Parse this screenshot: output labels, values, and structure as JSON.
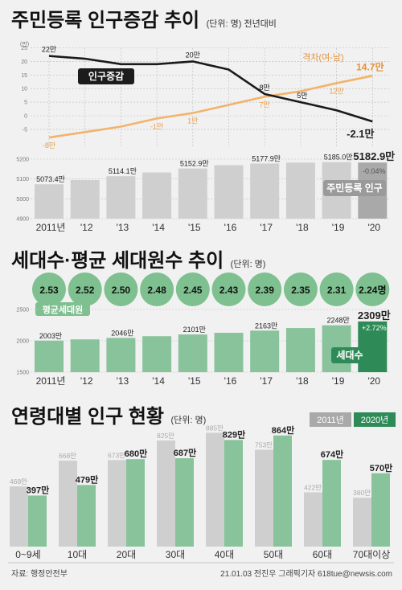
{
  "colors": {
    "dark_line": "#1a1a1a",
    "orange": "#f2b36c",
    "orange_text": "#e6913a",
    "bar_grey": "#cfcfcf",
    "bar_grey_dark": "#a9a9a9",
    "green": "#88c39b",
    "green_dark": "#2e8b57",
    "bubble_green": "#7ec08f",
    "badge_dark": "#1c1c1c"
  },
  "footer": {
    "source": "자료: 행정안전부",
    "credit": "21.01.03 전진우 그래픽기자 618tue@newsis.com"
  },
  "chart_data": [
    {
      "type": "line",
      "title": "주민등록 인구증감 추이",
      "unit": "(단위: 명) 전년대비",
      "yaxis_unit": "(만)",
      "yticks": [
        25,
        20,
        15,
        10,
        5,
        0,
        -5
      ],
      "ylim": [
        -5,
        25
      ],
      "x": [
        "2011년",
        "'12",
        "'13",
        "'14",
        "'15",
        "'16",
        "'17",
        "'18",
        "'19",
        "'20"
      ],
      "series": [
        {
          "name": "인구증감",
          "values": [
            22,
            21,
            19,
            19,
            20,
            17,
            8,
            5,
            2,
            -2.1
          ],
          "labels": [
            "22만",
            "",
            "",
            "",
            "20만",
            "",
            "8만",
            "5만",
            "",
            "-2.1만"
          ]
        },
        {
          "name": "격차(여-남)",
          "values": [
            -8,
            -6,
            -4,
            -1,
            1,
            4,
            7,
            9,
            12,
            14.7
          ],
          "labels": [
            "-8만",
            "",
            "",
            "-1만",
            "1만",
            "",
            "7만",
            "",
            "12만",
            "14.7만"
          ]
        }
      ]
    },
    {
      "type": "bar",
      "title": "주민등록 인구",
      "yticks": [
        5200,
        5100,
        5000,
        4900
      ],
      "ylim": [
        4900,
        5200
      ],
      "categories": [
        "2011년",
        "'12",
        "'13",
        "'14",
        "'15",
        "'16",
        "'17",
        "'18",
        "'19",
        "'20"
      ],
      "values": [
        5073.4,
        5094.8,
        5114.1,
        5132.8,
        5152.9,
        5169.6,
        5177.9,
        5182.6,
        5185.0,
        5182.9
      ],
      "labels": [
        "5073.4만",
        "",
        "5114.1만",
        "",
        "5152.9만",
        "",
        "5177.9만",
        "",
        "5185.0만",
        "5182.9만"
      ],
      "change_label": "-0.04%"
    },
    {
      "type": "bar",
      "title": "세대수·평균 세대원수 추이",
      "unit": "(단위: 명)",
      "avg_label": "평균세대원",
      "avg_values": [
        "2.53",
        "2.52",
        "2.50",
        "2.48",
        "2.45",
        "2.43",
        "2.39",
        "2.35",
        "2.31",
        "2.24명"
      ],
      "series_name": "세대수",
      "yticks": [
        2500,
        2000,
        1500
      ],
      "ylim": [
        1500,
        2500
      ],
      "categories": [
        "2011년",
        "'12",
        "'13",
        "'14",
        "'15",
        "'16",
        "'17",
        "'18",
        "'19",
        "'20"
      ],
      "values": [
        2003,
        2023,
        2046,
        2074,
        2101,
        2128,
        2163,
        2204,
        2248,
        2309
      ],
      "labels": [
        "2003만",
        "",
        "2046만",
        "",
        "2101만",
        "",
        "2163만",
        "",
        "2248만",
        "2309만"
      ],
      "change_label": "+2.72%"
    },
    {
      "type": "bar",
      "title": "연령대별 인구 현황",
      "unit": "(단위: 명)",
      "categories": [
        "0~9세",
        "10대",
        "20대",
        "30대",
        "40대",
        "50대",
        "60대",
        "70대이상"
      ],
      "series": [
        {
          "name": "2011년",
          "values": [
            468,
            668,
            673,
            825,
            885,
            753,
            422,
            380
          ],
          "labels": [
            "468만",
            "668만",
            "673만",
            "825만",
            "885만",
            "753만",
            "422만",
            "380만"
          ]
        },
        {
          "name": "2020년",
          "values": [
            397,
            479,
            680,
            687,
            829,
            864,
            674,
            570
          ],
          "labels": [
            "397만",
            "479만",
            "680만",
            "687만",
            "829만",
            "864만",
            "674만",
            "570만"
          ]
        }
      ]
    }
  ]
}
